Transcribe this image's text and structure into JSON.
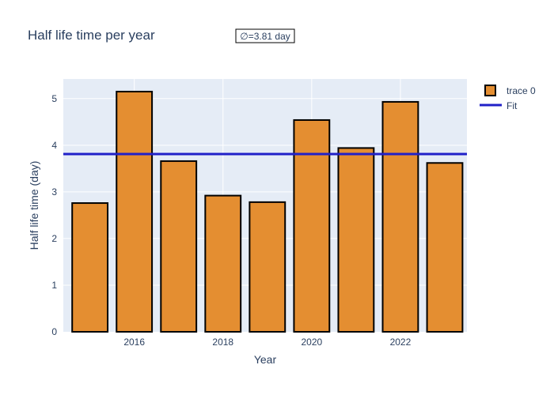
{
  "chart_data": {
    "type": "bar",
    "title": "Half life time per year",
    "xlabel": "Year",
    "ylabel": "Half life time (day)",
    "x": [
      2015,
      2016,
      2017,
      2018,
      2019,
      2020,
      2021,
      2022,
      2023
    ],
    "xticks": [
      2016,
      2018,
      2020,
      2022
    ],
    "xlim": [
      2014.4,
      2023.5
    ],
    "ylim": [
      0,
      5.42
    ],
    "yticks": [
      0,
      1,
      2,
      3,
      4,
      5
    ],
    "series": [
      {
        "name": "trace 0",
        "values": [
          2.76,
          5.15,
          3.66,
          2.92,
          2.78,
          4.54,
          3.94,
          4.93,
          3.62
        ],
        "color": "#e48e31",
        "edgecolor": "#000000"
      }
    ],
    "fit": {
      "name": "Fit",
      "value": 3.81,
      "color": "#2020c8"
    },
    "annotation": "∅=3.81 day",
    "plot_background": "#e5ecf6",
    "grid": true,
    "legend_position": "top-right"
  }
}
